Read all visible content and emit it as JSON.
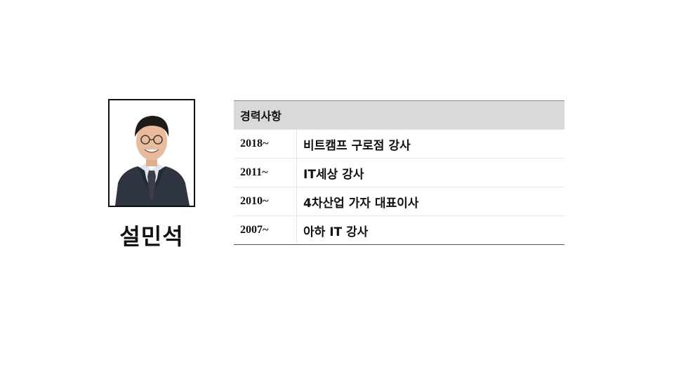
{
  "profile": {
    "name": "설민석"
  },
  "career": {
    "header": "경력사항",
    "rows": [
      {
        "year": "2018~",
        "desc": "비트캠프 구로점 강사"
      },
      {
        "year": "2011~",
        "desc": "IT세상 강사"
      },
      {
        "year": "2010~",
        "desc": "4차산업 가자 대표이사"
      },
      {
        "year": "2007~",
        "desc": "아하 IT 강사"
      }
    ]
  }
}
